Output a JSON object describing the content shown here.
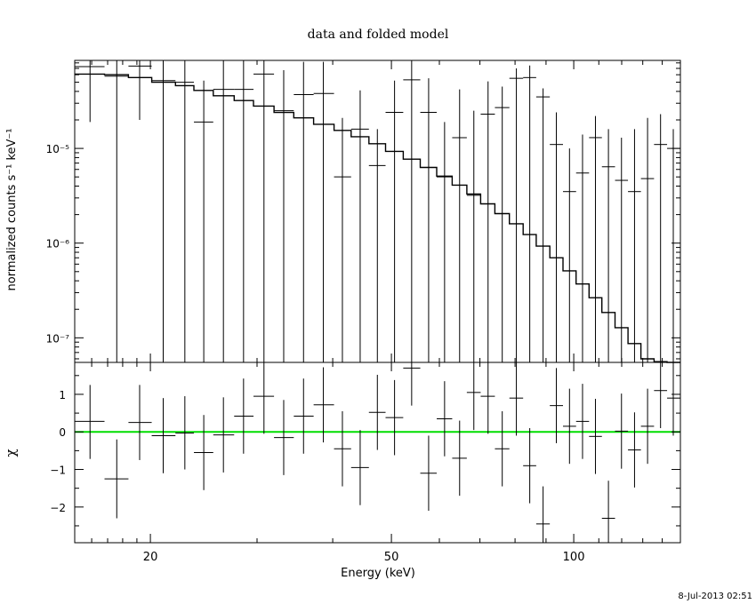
{
  "chart_data": [
    {
      "type": "scatter",
      "title": "data and folded model",
      "ylabel": "normalized counts s⁻¹ keV⁻¹",
      "xlabel": "",
      "xscale": "log",
      "yscale": "log",
      "xlim": [
        15.0,
        150.0
      ],
      "ylim": [
        5.5e-08,
        8.5e-05
      ],
      "yticks": [
        {
          "value": 1e-05,
          "label": "10⁻⁵"
        },
        {
          "value": 1e-06,
          "label": "10⁻⁶"
        },
        {
          "value": 1e-07,
          "label": "10⁻⁷"
        }
      ],
      "series": [
        {
          "kind": "data_with_errors",
          "points": [
            {
              "x": 15.9,
              "xlo": 15.0,
              "xhi": 16.8,
              "y": 7.3e-05,
              "ylo": 1.9e-05,
              "yhi": 9e-05
            },
            {
              "x": 17.6,
              "xlo": 16.8,
              "xhi": 18.4,
              "y": 5.8e-05,
              "ylo": 5.5e-08,
              "yhi": 9e-05
            },
            {
              "x": 19.2,
              "xlo": 18.4,
              "xhi": 20.1,
              "y": 7.4e-05,
              "ylo": 2e-05,
              "yhi": 9e-05
            },
            {
              "x": 21.0,
              "xlo": 20.1,
              "xhi": 22.0,
              "y": 5.2e-05,
              "ylo": 5.5e-08,
              "yhi": 9e-05
            },
            {
              "x": 22.8,
              "xlo": 22.0,
              "xhi": 23.6,
              "y": 5e-05,
              "ylo": 5.5e-08,
              "yhi": 9e-05
            },
            {
              "x": 24.5,
              "xlo": 23.6,
              "xhi": 25.4,
              "y": 1.9e-05,
              "ylo": 5.5e-08,
              "yhi": 5.2e-05
            },
            {
              "x": 26.4,
              "xlo": 25.4,
              "xhi": 27.5,
              "y": 4.2e-05,
              "ylo": 5.5e-08,
              "yhi": 9e-05
            },
            {
              "x": 28.5,
              "xlo": 27.5,
              "xhi": 29.6,
              "y": 4.2e-05,
              "ylo": 5.5e-08,
              "yhi": 9e-05
            },
            {
              "x": 30.8,
              "xlo": 29.6,
              "xhi": 32.0,
              "y": 6.1e-05,
              "ylo": 5.5e-08,
              "yhi": 9e-05
            },
            {
              "x": 33.2,
              "xlo": 32.0,
              "xhi": 34.5,
              "y": 2.5e-05,
              "ylo": 5.5e-08,
              "yhi": 6.7e-05
            },
            {
              "x": 35.8,
              "xlo": 34.5,
              "xhi": 37.2,
              "y": 3.7e-05,
              "ylo": 5.5e-08,
              "yhi": 8.2e-05
            },
            {
              "x": 38.6,
              "xlo": 37.2,
              "xhi": 40.2,
              "y": 3.8e-05,
              "ylo": 5.5e-08,
              "yhi": 8.2e-05
            },
            {
              "x": 41.5,
              "xlo": 40.2,
              "xhi": 42.9,
              "y": 5e-06,
              "ylo": 5.5e-08,
              "yhi": 2.1e-05
            },
            {
              "x": 44.4,
              "xlo": 42.9,
              "xhi": 45.9,
              "y": 1.6e-05,
              "ylo": 5.5e-08,
              "yhi": 4.1e-05
            },
            {
              "x": 47.4,
              "xlo": 45.9,
              "xhi": 48.9,
              "y": 6.6e-06,
              "ylo": 5.5e-08,
              "yhi": 1.6e-05
            },
            {
              "x": 50.6,
              "xlo": 48.9,
              "xhi": 52.3,
              "y": 2.4e-05,
              "ylo": 5.5e-08,
              "yhi": 5.2e-05
            },
            {
              "x": 54.0,
              "xlo": 52.3,
              "xhi": 55.8,
              "y": 5.3e-05,
              "ylo": 5.5e-08,
              "yhi": 8.5e-05
            },
            {
              "x": 57.6,
              "xlo": 55.8,
              "xhi": 59.4,
              "y": 2.4e-05,
              "ylo": 5.5e-08,
              "yhi": 5.5e-05
            },
            {
              "x": 61.2,
              "xlo": 59.4,
              "xhi": 63.0,
              "y": 5e-06,
              "ylo": 5.5e-08,
              "yhi": 1.9e-05
            },
            {
              "x": 64.8,
              "xlo": 63.0,
              "xhi": 66.6,
              "y": 1.3e-05,
              "ylo": 5.5e-08,
              "yhi": 4.2e-05
            },
            {
              "x": 68.4,
              "xlo": 66.6,
              "xhi": 70.2,
              "y": 3.2e-06,
              "ylo": 5.5e-08,
              "yhi": 2.5e-05
            },
            {
              "x": 72.2,
              "xlo": 70.2,
              "xhi": 74.1,
              "y": 2.3e-05,
              "ylo": 5.5e-08,
              "yhi": 5.1e-05
            },
            {
              "x": 76.2,
              "xlo": 74.1,
              "xhi": 78.3,
              "y": 2.7e-05,
              "ylo": 5.5e-08,
              "yhi": 4.5e-05
            },
            {
              "x": 80.4,
              "xlo": 78.3,
              "xhi": 82.5,
              "y": 5.5e-05,
              "ylo": 5.5e-08,
              "yhi": 7e-05
            },
            {
              "x": 84.6,
              "xlo": 82.5,
              "xhi": 86.7,
              "y": 5.6e-05,
              "ylo": 5.5e-08,
              "yhi": 7.5e-05
            },
            {
              "x": 89.0,
              "xlo": 86.7,
              "xhi": 91.3,
              "y": 3.5e-05,
              "ylo": 5.5e-08,
              "yhi": 4.3e-05
            },
            {
              "x": 93.6,
              "xlo": 91.3,
              "xhi": 96.0,
              "y": 1.1e-05,
              "ylo": 5.5e-08,
              "yhi": 2.4e-05
            },
            {
              "x": 98.4,
              "xlo": 96.0,
              "xhi": 100.9,
              "y": 3.5e-06,
              "ylo": 5.5e-08,
              "yhi": 1e-05
            },
            {
              "x": 103.4,
              "xlo": 100.9,
              "xhi": 106.0,
              "y": 5.5e-06,
              "ylo": 5.5e-08,
              "yhi": 1.4e-05
            },
            {
              "x": 108.6,
              "xlo": 106.0,
              "xhi": 111.3,
              "y": 1.3e-05,
              "ylo": 5.5e-08,
              "yhi": 2.2e-05
            },
            {
              "x": 114.1,
              "xlo": 111.3,
              "xhi": 117.0,
              "y": 6.4e-06,
              "ylo": 5.5e-08,
              "yhi": 1.6e-05
            },
            {
              "x": 119.9,
              "xlo": 117.0,
              "xhi": 122.9,
              "y": 4.6e-06,
              "ylo": 5.5e-08,
              "yhi": 1.3e-05
            },
            {
              "x": 126.0,
              "xlo": 122.9,
              "xhi": 129.1,
              "y": 3.5e-06,
              "ylo": 5.5e-08,
              "yhi": 1.6e-05
            },
            {
              "x": 132.4,
              "xlo": 129.1,
              "xhi": 135.7,
              "y": 4.8e-06,
              "ylo": 5.5e-08,
              "yhi": 2.1e-05
            },
            {
              "x": 139.1,
              "xlo": 135.7,
              "xhi": 142.6,
              "y": 1.1e-05,
              "ylo": 5.5e-08,
              "yhi": 2.3e-05
            },
            {
              "x": 146.0,
              "xlo": 142.6,
              "xhi": 150.0,
              "y": 1e-05,
              "ylo": 5.5e-08,
              "yhi": 1.6e-05
            }
          ]
        },
        {
          "kind": "model_step",
          "edges": [
            15.0,
            16.8,
            18.4,
            20.1,
            22.0,
            23.6,
            25.4,
            27.5,
            29.6,
            32.0,
            34.5,
            37.2,
            40.2,
            42.9,
            45.9,
            48.9,
            52.3,
            55.8,
            59.4,
            63.0,
            66.6,
            70.2,
            74.1,
            78.3,
            82.5,
            86.7,
            91.3,
            96.0,
            100.9,
            106.0,
            111.3,
            117.0,
            122.9,
            129.1,
            135.7,
            142.6,
            150.0
          ],
          "values": [
            6.1e-05,
            6e-05,
            5.6e-05,
            5e-05,
            4.6e-05,
            4.1e-05,
            3.6e-05,
            3.2e-05,
            2.8e-05,
            2.4e-05,
            2.1e-05,
            1.8e-05,
            1.55e-05,
            1.33e-05,
            1.12e-05,
            9.3e-06,
            7.7e-06,
            6.3e-06,
            5.1e-06,
            4.1e-06,
            3.3e-06,
            2.6e-06,
            2.05e-06,
            1.6e-06,
            1.23e-06,
            9.3e-07,
            7e-07,
            5.1e-07,
            3.7e-07,
            2.65e-07,
            1.85e-07,
            1.28e-07,
            8.7e-08,
            6e-08,
            5.6e-08,
            5.5e-08
          ]
        }
      ]
    },
    {
      "type": "scatter",
      "title": "",
      "xlabel": "Energy (keV)",
      "ylabel": "χ",
      "xscale": "log",
      "xlim": [
        15.0,
        150.0
      ],
      "ylim": [
        -2.95,
        1.85
      ],
      "xticks": [
        {
          "value": 20,
          "label": "20"
        },
        {
          "value": 50,
          "label": "50"
        },
        {
          "value": 100,
          "label": "100"
        }
      ],
      "yticks": [
        {
          "value": 1,
          "label": "1"
        },
        {
          "value": 0,
          "label": "0"
        },
        {
          "value": -1,
          "label": "−1"
        },
        {
          "value": -2,
          "label": "−2"
        }
      ],
      "reference_line": {
        "y": 0,
        "color": "#00dd00"
      },
      "series": [
        {
          "kind": "residuals_with_errors",
          "points": [
            {
              "x": 15.9,
              "xlo": 15.0,
              "xhi": 16.8,
              "y": 0.28,
              "ylo": -0.72,
              "yhi": 1.25
            },
            {
              "x": 17.6,
              "xlo": 16.8,
              "xhi": 18.4,
              "y": -1.25,
              "ylo": -2.3,
              "yhi": -0.2
            },
            {
              "x": 19.2,
              "xlo": 18.4,
              "xhi": 20.1,
              "y": 0.25,
              "ylo": -0.75,
              "yhi": 1.25
            },
            {
              "x": 21.0,
              "xlo": 20.1,
              "xhi": 22.0,
              "y": -0.1,
              "ylo": -1.1,
              "yhi": 0.9
            },
            {
              "x": 22.8,
              "xlo": 22.0,
              "xhi": 23.6,
              "y": -0.03,
              "ylo": -1.0,
              "yhi": 0.95
            },
            {
              "x": 24.5,
              "xlo": 23.6,
              "xhi": 25.4,
              "y": -0.55,
              "ylo": -1.55,
              "yhi": 0.45
            },
            {
              "x": 26.4,
              "xlo": 25.4,
              "xhi": 27.5,
              "y": -0.08,
              "ylo": -1.08,
              "yhi": 0.92
            },
            {
              "x": 28.5,
              "xlo": 27.5,
              "xhi": 29.6,
              "y": 0.42,
              "ylo": -0.58,
              "yhi": 1.42
            },
            {
              "x": 30.8,
              "xlo": 29.6,
              "xhi": 32.0,
              "y": 0.95,
              "ylo": -0.05,
              "yhi": 1.95
            },
            {
              "x": 33.2,
              "xlo": 32.0,
              "xhi": 34.5,
              "y": -0.15,
              "ylo": -1.15,
              "yhi": 0.85
            },
            {
              "x": 35.8,
              "xlo": 34.5,
              "xhi": 37.2,
              "y": 0.42,
              "ylo": -0.58,
              "yhi": 1.42
            },
            {
              "x": 38.6,
              "xlo": 37.2,
              "xhi": 40.2,
              "y": 0.72,
              "ylo": -0.28,
              "yhi": 1.72
            },
            {
              "x": 41.5,
              "xlo": 40.2,
              "xhi": 42.9,
              "y": -0.45,
              "ylo": -1.45,
              "yhi": 0.55
            },
            {
              "x": 44.4,
              "xlo": 42.9,
              "xhi": 45.9,
              "y": -0.95,
              "ylo": -1.95,
              "yhi": 0.05
            },
            {
              "x": 47.4,
              "xlo": 45.9,
              "xhi": 48.9,
              "y": 0.52,
              "ylo": -0.48,
              "yhi": 1.52
            },
            {
              "x": 50.6,
              "xlo": 48.9,
              "xhi": 52.3,
              "y": 0.38,
              "ylo": -0.62,
              "yhi": 1.38
            },
            {
              "x": 54.0,
              "xlo": 52.3,
              "xhi": 55.8,
              "y": 1.7,
              "ylo": 0.7,
              "yhi": 2.7
            },
            {
              "x": 57.6,
              "xlo": 55.8,
              "xhi": 59.4,
              "y": -1.1,
              "ylo": -2.1,
              "yhi": -0.1
            },
            {
              "x": 61.2,
              "xlo": 59.4,
              "xhi": 63.0,
              "y": 0.35,
              "ylo": -0.65,
              "yhi": 1.35
            },
            {
              "x": 64.8,
              "xlo": 63.0,
              "xhi": 66.6,
              "y": -0.7,
              "ylo": -1.7,
              "yhi": 0.3
            },
            {
              "x": 68.4,
              "xlo": 66.6,
              "xhi": 70.2,
              "y": 1.05,
              "ylo": 0.05,
              "yhi": 2.05
            },
            {
              "x": 72.2,
              "xlo": 70.2,
              "xhi": 74.1,
              "y": 0.95,
              "ylo": -0.05,
              "yhi": 1.95
            },
            {
              "x": 76.2,
              "xlo": 74.1,
              "xhi": 78.3,
              "y": -0.45,
              "ylo": -1.45,
              "yhi": 0.55
            },
            {
              "x": 80.4,
              "xlo": 78.3,
              "xhi": 82.5,
              "y": 0.9,
              "ylo": -0.1,
              "yhi": 1.9
            },
            {
              "x": 84.6,
              "xlo": 82.5,
              "xhi": 86.7,
              "y": -0.9,
              "ylo": -1.9,
              "yhi": 0.1
            },
            {
              "x": 89.0,
              "xlo": 86.7,
              "xhi": 91.3,
              "y": -2.45,
              "ylo": -3.45,
              "yhi": -1.45
            },
            {
              "x": 93.6,
              "xlo": 91.3,
              "xhi": 96.0,
              "y": 0.7,
              "ylo": -0.3,
              "yhi": 1.7
            },
            {
              "x": 98.4,
              "xlo": 96.0,
              "xhi": 100.9,
              "y": 0.15,
              "ylo": -0.85,
              "yhi": 1.15
            },
            {
              "x": 103.4,
              "xlo": 100.9,
              "xhi": 106.0,
              "y": 0.28,
              "ylo": -0.72,
              "yhi": 1.28
            },
            {
              "x": 108.6,
              "xlo": 106.0,
              "xhi": 111.3,
              "y": -0.12,
              "ylo": -1.12,
              "yhi": 0.88
            },
            {
              "x": 114.1,
              "xlo": 111.3,
              "xhi": 117.0,
              "y": -2.3,
              "ylo": -3.3,
              "yhi": -1.3
            },
            {
              "x": 119.9,
              "xlo": 117.0,
              "xhi": 122.9,
              "y": 0.02,
              "ylo": -0.98,
              "yhi": 1.02
            },
            {
              "x": 126.0,
              "xlo": 122.9,
              "xhi": 129.1,
              "y": -0.48,
              "ylo": -1.48,
              "yhi": 0.52
            },
            {
              "x": 132.4,
              "xlo": 129.1,
              "xhi": 135.7,
              "y": 0.15,
              "ylo": -0.85,
              "yhi": 1.15
            },
            {
              "x": 139.1,
              "xlo": 135.7,
              "xhi": 142.6,
              "y": 1.1,
              "ylo": 0.1,
              "yhi": 2.1
            },
            {
              "x": 146.0,
              "xlo": 142.6,
              "xhi": 150.0,
              "y": 0.9,
              "ylo": -0.1,
              "yhi": 1.9
            }
          ]
        }
      ]
    }
  ],
  "footer": {
    "timestamp": "8-Jul-2013 02:51"
  },
  "colors": {
    "axis": "#000000",
    "model": "#000000",
    "data": "#000000",
    "zero_line": "#00dd00"
  }
}
